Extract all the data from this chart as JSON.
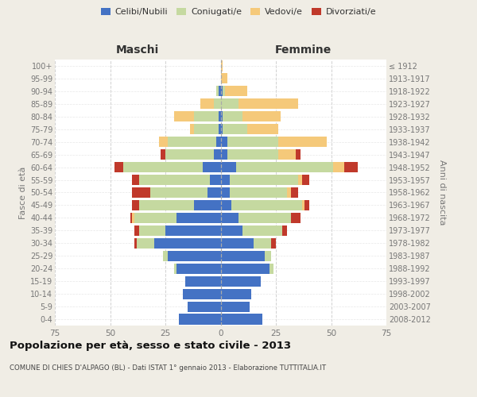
{
  "age_groups": [
    "0-4",
    "5-9",
    "10-14",
    "15-19",
    "20-24",
    "25-29",
    "30-34",
    "35-39",
    "40-44",
    "45-49",
    "50-54",
    "55-59",
    "60-64",
    "65-69",
    "70-74",
    "75-79",
    "80-84",
    "85-89",
    "90-94",
    "95-99",
    "100+"
  ],
  "birth_years": [
    "2008-2012",
    "2003-2007",
    "1998-2002",
    "1993-1997",
    "1988-1992",
    "1983-1987",
    "1978-1982",
    "1973-1977",
    "1968-1972",
    "1963-1967",
    "1958-1962",
    "1953-1957",
    "1948-1952",
    "1943-1947",
    "1938-1942",
    "1933-1937",
    "1928-1932",
    "1923-1927",
    "1918-1922",
    "1913-1917",
    "≤ 1912"
  ],
  "colors": {
    "celibi": "#4472c4",
    "coniugati": "#c5d9a0",
    "vedovi": "#f5c97a",
    "divorziati": "#c0392b"
  },
  "males": {
    "celibi": [
      19,
      15,
      17,
      16,
      20,
      24,
      30,
      25,
      20,
      12,
      6,
      5,
      8,
      3,
      2,
      1,
      1,
      0,
      1,
      0,
      0
    ],
    "coniugati": [
      0,
      0,
      0,
      0,
      1,
      2,
      8,
      12,
      19,
      25,
      26,
      32,
      36,
      22,
      22,
      11,
      11,
      3,
      1,
      0,
      0
    ],
    "vedovi": [
      0,
      0,
      0,
      0,
      0,
      0,
      0,
      0,
      1,
      0,
      0,
      0,
      0,
      0,
      4,
      2,
      9,
      6,
      0,
      0,
      0
    ],
    "divorziati": [
      0,
      0,
      0,
      0,
      0,
      0,
      1,
      2,
      1,
      3,
      8,
      3,
      4,
      2,
      0,
      0,
      0,
      0,
      0,
      0,
      0
    ]
  },
  "females": {
    "celibi": [
      19,
      13,
      14,
      18,
      22,
      20,
      15,
      10,
      8,
      5,
      4,
      4,
      7,
      3,
      3,
      1,
      1,
      0,
      1,
      0,
      0
    ],
    "coniugati": [
      0,
      0,
      0,
      0,
      2,
      3,
      8,
      18,
      24,
      32,
      26,
      31,
      44,
      23,
      23,
      11,
      9,
      8,
      1,
      0,
      0
    ],
    "vedovi": [
      0,
      0,
      0,
      0,
      0,
      0,
      0,
      0,
      0,
      1,
      2,
      2,
      5,
      8,
      22,
      14,
      17,
      27,
      10,
      3,
      1
    ],
    "divorziati": [
      0,
      0,
      0,
      0,
      0,
      0,
      2,
      2,
      4,
      2,
      3,
      3,
      6,
      2,
      0,
      0,
      0,
      0,
      0,
      0,
      0
    ]
  },
  "xlim": 75,
  "title": "Popolazione per età, sesso e stato civile - 2013",
  "subtitle": "COMUNE DI CHIES D'ALPAGO (BL) - Dati ISTAT 1° gennaio 2013 - Elaborazione TUTTITALIA.IT",
  "xlabel_left": "Maschi",
  "xlabel_right": "Femmine",
  "ylabel_left": "Fasce di età",
  "ylabel_right": "Anni di nascita",
  "legend_labels": [
    "Celibi/Nubili",
    "Coniugati/e",
    "Vedovi/e",
    "Divorziati/e"
  ],
  "bg_color": "#f0ede5",
  "plot_bg_color": "#ffffff",
  "grid_color": "#cccccc",
  "tick_color": "#777777"
}
